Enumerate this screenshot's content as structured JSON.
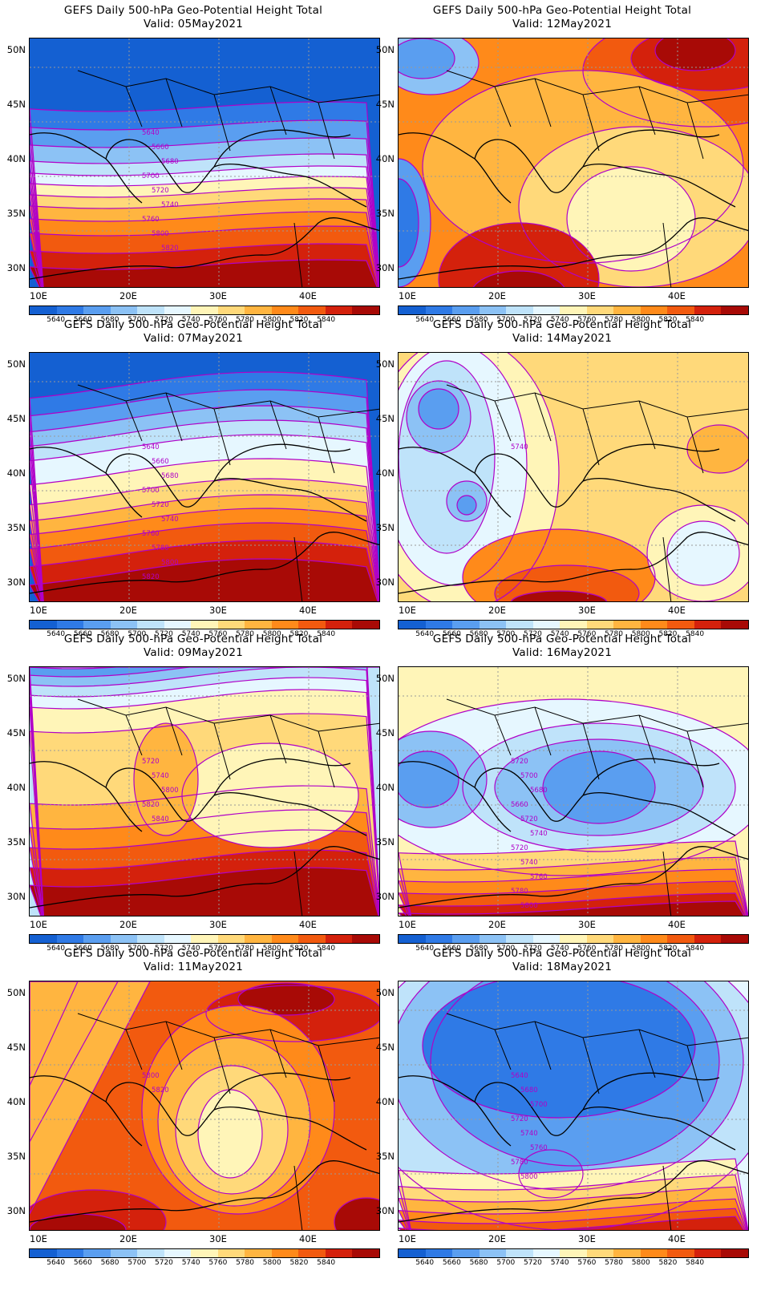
{
  "title_line1": "GEFS Daily 500-hPa Geo-Potential Height Total",
  "x_ticks": [
    "10E",
    "20E",
    "30E",
    "40E"
  ],
  "y_ticks": [
    "50N",
    "45N",
    "40N",
    "35N",
    "30N"
  ],
  "colorbar": {
    "labels": [
      "5640",
      "5660",
      "5680",
      "5700",
      "5720",
      "5740",
      "5760",
      "5780",
      "5800",
      "5820",
      "5840"
    ],
    "colors": [
      "#1460d2",
      "#2f7ae6",
      "#5a9ef0",
      "#8cc2f5",
      "#bfe3fa",
      "#e6f7ff",
      "#fff5b8",
      "#ffd97a",
      "#ffb540",
      "#ff8a1a",
      "#f25a0f",
      "#d4210c",
      "#a80a06"
    ]
  },
  "panels": [
    {
      "valid": "Valid: 05May2021",
      "scheme": "mayFive",
      "contour_labels": [
        "5640",
        "5660",
        "5680",
        "5700",
        "5720",
        "5740",
        "5760",
        "5800",
        "5820"
      ]
    },
    {
      "valid": "Valid: 12May2021",
      "scheme": "hot",
      "contour_labels": []
    },
    {
      "valid": "Valid: 07May2021",
      "scheme": "mid",
      "contour_labels": [
        "5640",
        "5660",
        "5680",
        "5700",
        "5720",
        "5740",
        "5760",
        "5780",
        "5800",
        "5820"
      ]
    },
    {
      "valid": "Valid: 14May2021",
      "scheme": "lowwest",
      "contour_labels": [
        "5740"
      ]
    },
    {
      "valid": "Valid: 09May2021",
      "scheme": "warm",
      "contour_labels": [
        "5720",
        "5740",
        "5800",
        "5820",
        "5840"
      ]
    },
    {
      "valid": "Valid: 16May2021",
      "scheme": "cool",
      "contour_labels": [
        "5720",
        "5700",
        "5680",
        "5660",
        "5720",
        "5740",
        "5720",
        "5740",
        "5760",
        "5780",
        "5800",
        "5820"
      ]
    },
    {
      "valid": "Valid: 11May2021",
      "scheme": "ridge",
      "contour_labels": [
        "5800",
        "5820"
      ]
    },
    {
      "valid": "Valid: 18May2021",
      "scheme": "trough",
      "contour_labels": [
        "5640",
        "5680",
        "5700",
        "5720",
        "5740",
        "5760",
        "5780",
        "5800"
      ]
    }
  ]
}
